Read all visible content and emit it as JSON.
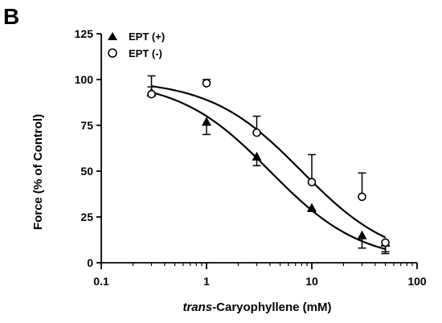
{
  "panel_label": "B",
  "chart_data": {
    "type": "scatter",
    "xlabel_italic": "trans",
    "xlabel_rest": "-Caryophyllene (mM)",
    "ylabel": "Force (% of Control)",
    "xscale": "log",
    "xlim": [
      0.1,
      100
    ],
    "ylim": [
      0,
      125
    ],
    "x_ticks": [
      0.1,
      1,
      10,
      100
    ],
    "x_tick_labels": [
      "0.1",
      "1",
      "10",
      "100"
    ],
    "y_ticks": [
      0,
      25,
      50,
      75,
      100,
      125
    ],
    "y_tick_labels": [
      "0",
      "25",
      "50",
      "75",
      "100",
      "125"
    ],
    "legend_position": "top-left",
    "series": [
      {
        "name": "EPT (+)",
        "marker": "filled-triangle",
        "x": [
          0.3,
          1,
          3,
          10,
          30,
          50
        ],
        "y": [
          93,
          77,
          58,
          30,
          15,
          11
        ],
        "err": [
          3,
          7,
          5,
          2,
          7,
          6
        ],
        "err_dir": [
          "up",
          "down",
          "down",
          "down",
          "down",
          "down"
        ],
        "fit_ic50": 4.0,
        "fit_hill": 1.0
      },
      {
        "name": "EPT (-)",
        "marker": "open-circle",
        "x": [
          0.3,
          1,
          3,
          10,
          30,
          50
        ],
        "y": [
          92,
          98,
          71,
          44,
          36,
          11
        ],
        "err": [
          10,
          2,
          9,
          15,
          13,
          5
        ],
        "err_dir": [
          "up",
          "up",
          "up",
          "up",
          "up",
          "down"
        ],
        "fit_ic50": 8.0,
        "fit_hill": 1.0
      }
    ]
  }
}
